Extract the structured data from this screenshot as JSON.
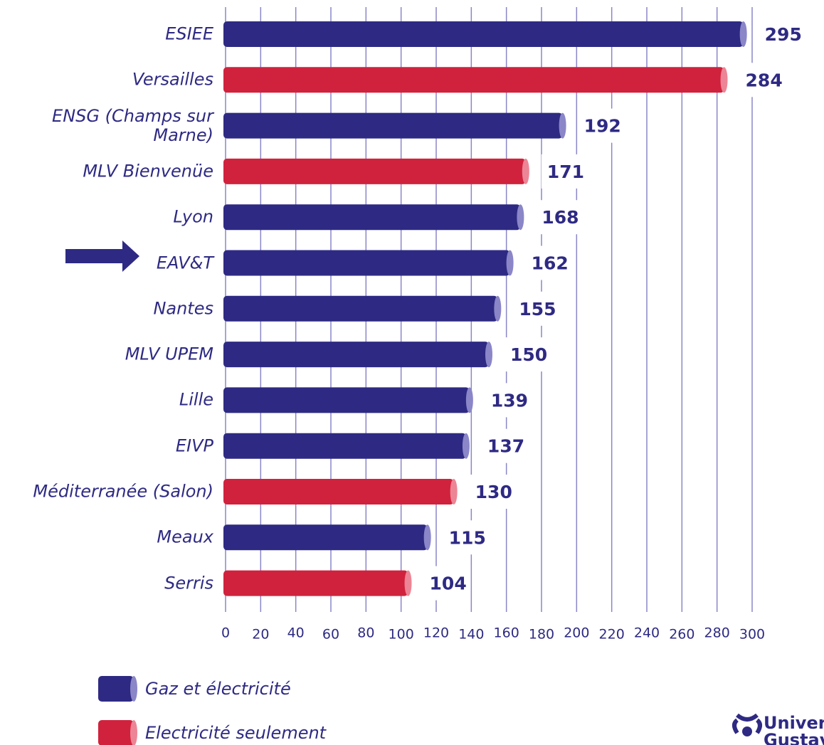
{
  "chart_data": {
    "type": "bar",
    "orientation": "horizontal",
    "categories": [
      "ESIEE",
      "Versailles",
      "ENSG (Champs sur Marne)",
      "MLV  Bienvenüe",
      "Lyon",
      "EAV&T",
      "Nantes",
      "MLV UPEM",
      "Lille",
      "EIVP",
      "Méditerranée (Salon)",
      "Meaux",
      "Serris"
    ],
    "series": [
      {
        "name": "Gaz et électricité",
        "color": "#2e2a83",
        "values": [
          295,
          null,
          192,
          null,
          168,
          162,
          155,
          150,
          139,
          137,
          null,
          115,
          null
        ]
      },
      {
        "name": "Electricité seulement",
        "color": "#d0223c",
        "values": [
          null,
          284,
          null,
          171,
          null,
          null,
          null,
          null,
          null,
          null,
          130,
          null,
          104
        ]
      }
    ],
    "xlim": [
      0,
      300
    ],
    "xticks": [
      0,
      20,
      40,
      60,
      80,
      100,
      120,
      140,
      160,
      180,
      200,
      220,
      240,
      260,
      280,
      300
    ],
    "grid": true,
    "logo": [
      "Université",
      "Gustave Eiffel"
    ]
  }
}
